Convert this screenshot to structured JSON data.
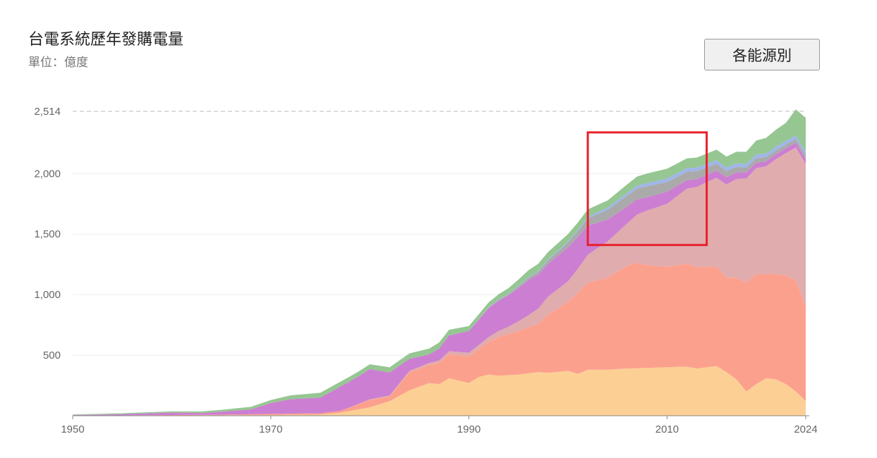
{
  "header": {
    "title": "台電系統歷年發購電量",
    "unit": "單位：億度",
    "source_button": "各能源別"
  },
  "colors": {
    "highlight": "#e8202a",
    "gridline": "#eeeeee",
    "topline": "#bbbbbb"
  },
  "chart_data": {
    "type": "area",
    "stacked": true,
    "title": "台電系統歷年發購電量",
    "ylabel": "單位：億度",
    "xlabel": "",
    "xlim": [
      1950,
      2024
    ],
    "ylim": [
      0,
      2514
    ],
    "max_label": "2,514",
    "yticks": [
      500,
      1000,
      1500,
      2000
    ],
    "ytick_labels": [
      "500",
      "1,000",
      "1,500",
      "2,000"
    ],
    "xticks": [
      1950,
      1970,
      1990,
      2010,
      2024
    ],
    "xtick_labels": [
      "1950",
      "1970",
      "1990",
      "2010",
      "2024"
    ],
    "highlight_box": {
      "x_range": [
        2002,
        2014
      ],
      "y_range": [
        1410,
        2340
      ]
    },
    "series": [
      {
        "name": "series-1",
        "color": "#fcd095",
        "points": [
          [
            1950,
            0
          ],
          [
            1970,
            5
          ],
          [
            1975,
            10
          ],
          [
            1977,
            25
          ],
          [
            1980,
            70
          ],
          [
            1982,
            120
          ],
          [
            1984,
            210
          ],
          [
            1986,
            270
          ],
          [
            1987,
            260
          ],
          [
            1988,
            310
          ],
          [
            1990,
            270
          ],
          [
            1991,
            320
          ],
          [
            1992,
            340
          ],
          [
            1993,
            330
          ],
          [
            1995,
            340
          ],
          [
            1997,
            360
          ],
          [
            1998,
            355
          ],
          [
            2000,
            370
          ],
          [
            2001,
            345
          ],
          [
            2002,
            380
          ],
          [
            2004,
            380
          ],
          [
            2006,
            390
          ],
          [
            2008,
            395
          ],
          [
            2010,
            400
          ],
          [
            2012,
            405
          ],
          [
            2013,
            390
          ],
          [
            2015,
            410
          ],
          [
            2016,
            360
          ],
          [
            2017,
            300
          ],
          [
            2018,
            200
          ],
          [
            2019,
            260
          ],
          [
            2020,
            310
          ],
          [
            2021,
            300
          ],
          [
            2022,
            260
          ],
          [
            2023,
            200
          ],
          [
            2024,
            120
          ]
        ]
      },
      {
        "name": "series-2",
        "color": "#fca08e",
        "points": [
          [
            1950,
            0
          ],
          [
            1965,
            5
          ],
          [
            1970,
            10
          ],
          [
            1975,
            10
          ],
          [
            1977,
            15
          ],
          [
            1980,
            60
          ],
          [
            1982,
            40
          ],
          [
            1984,
            150
          ],
          [
            1986,
            150
          ],
          [
            1988,
            200
          ],
          [
            1990,
            220
          ],
          [
            1991,
            230
          ],
          [
            1992,
            270
          ],
          [
            1993,
            320
          ],
          [
            1995,
            360
          ],
          [
            1997,
            400
          ],
          [
            1998,
            480
          ],
          [
            2000,
            570
          ],
          [
            2001,
            670
          ],
          [
            2002,
            720
          ],
          [
            2004,
            760
          ],
          [
            2006,
            850
          ],
          [
            2007,
            870
          ],
          [
            2008,
            850
          ],
          [
            2010,
            830
          ],
          [
            2012,
            850
          ],
          [
            2013,
            840
          ],
          [
            2015,
            820
          ],
          [
            2016,
            780
          ],
          [
            2017,
            840
          ],
          [
            2018,
            900
          ],
          [
            2019,
            910
          ],
          [
            2020,
            860
          ],
          [
            2021,
            870
          ],
          [
            2022,
            900
          ],
          [
            2023,
            920
          ],
          [
            2024,
            780
          ]
        ]
      },
      {
        "name": "series-3",
        "color": "#e0acae",
        "points": [
          [
            1950,
            0
          ],
          [
            1978,
            0
          ],
          [
            1980,
            5
          ],
          [
            1984,
            10
          ],
          [
            1987,
            20
          ],
          [
            1990,
            30
          ],
          [
            1992,
            40
          ],
          [
            1994,
            60
          ],
          [
            1996,
            100
          ],
          [
            1998,
            150
          ],
          [
            2000,
            170
          ],
          [
            2002,
            230
          ],
          [
            2004,
            300
          ],
          [
            2006,
            350
          ],
          [
            2008,
            450
          ],
          [
            2010,
            520
          ],
          [
            2012,
            620
          ],
          [
            2014,
            700
          ],
          [
            2016,
            770
          ],
          [
            2018,
            860
          ],
          [
            2020,
            890
          ],
          [
            2022,
            1010
          ],
          [
            2024,
            1180
          ]
        ]
      },
      {
        "name": "series-4",
        "color": "#cc7ed2",
        "points": [
          [
            1950,
            5
          ],
          [
            1955,
            10
          ],
          [
            1960,
            20
          ],
          [
            1963,
            15
          ],
          [
            1965,
            25
          ],
          [
            1968,
            40
          ],
          [
            1970,
            90
          ],
          [
            1972,
            120
          ],
          [
            1975,
            130
          ],
          [
            1977,
            200
          ],
          [
            1979,
            230
          ],
          [
            1980,
            250
          ],
          [
            1982,
            190
          ],
          [
            1984,
            100
          ],
          [
            1986,
            70
          ],
          [
            1988,
            130
          ],
          [
            1990,
            180
          ],
          [
            1992,
            240
          ],
          [
            1994,
            260
          ],
          [
            1996,
            290
          ],
          [
            1998,
            270
          ],
          [
            2000,
            280
          ],
          [
            2002,
            240
          ],
          [
            2004,
            180
          ],
          [
            2006,
            140
          ],
          [
            2008,
            110
          ],
          [
            2010,
            100
          ],
          [
            2012,
            70
          ],
          [
            2014,
            60
          ],
          [
            2016,
            60
          ],
          [
            2018,
            50
          ],
          [
            2020,
            40
          ],
          [
            2022,
            40
          ],
          [
            2024,
            40
          ]
        ]
      },
      {
        "name": "series-5",
        "color": "#aaaaaa",
        "points": [
          [
            1950,
            0
          ],
          [
            1990,
            0
          ],
          [
            1992,
            5
          ],
          [
            1994,
            10
          ],
          [
            1996,
            20
          ],
          [
            1998,
            30
          ],
          [
            2000,
            40
          ],
          [
            2002,
            60
          ],
          [
            2004,
            80
          ],
          [
            2006,
            90
          ],
          [
            2008,
            90
          ],
          [
            2010,
            80
          ],
          [
            2012,
            70
          ],
          [
            2014,
            60
          ],
          [
            2016,
            50
          ],
          [
            2018,
            40
          ],
          [
            2020,
            35
          ],
          [
            2022,
            30
          ],
          [
            2024,
            30
          ]
        ]
      },
      {
        "name": "series-6",
        "color": "#9fb6e8",
        "points": [
          [
            1950,
            0
          ],
          [
            1990,
            0
          ],
          [
            1995,
            5
          ],
          [
            2000,
            10
          ],
          [
            2005,
            20
          ],
          [
            2010,
            30
          ],
          [
            2015,
            30
          ],
          [
            2020,
            30
          ],
          [
            2024,
            30
          ]
        ]
      },
      {
        "name": "series-7",
        "color": "#96c692",
        "points": [
          [
            1950,
            5
          ],
          [
            1960,
            10
          ],
          [
            1965,
            15
          ],
          [
            1970,
            25
          ],
          [
            1975,
            40
          ],
          [
            1980,
            40
          ],
          [
            1984,
            45
          ],
          [
            1987,
            50
          ],
          [
            1990,
            40
          ],
          [
            1992,
            40
          ],
          [
            1994,
            45
          ],
          [
            1996,
            55
          ],
          [
            1998,
            60
          ],
          [
            2000,
            60
          ],
          [
            2002,
            60
          ],
          [
            2004,
            60
          ],
          [
            2006,
            70
          ],
          [
            2008,
            80
          ],
          [
            2010,
            80
          ],
          [
            2012,
            80
          ],
          [
            2014,
            85
          ],
          [
            2016,
            90
          ],
          [
            2018,
            100
          ],
          [
            2020,
            130
          ],
          [
            2022,
            150
          ],
          [
            2024,
            280
          ]
        ]
      }
    ]
  }
}
